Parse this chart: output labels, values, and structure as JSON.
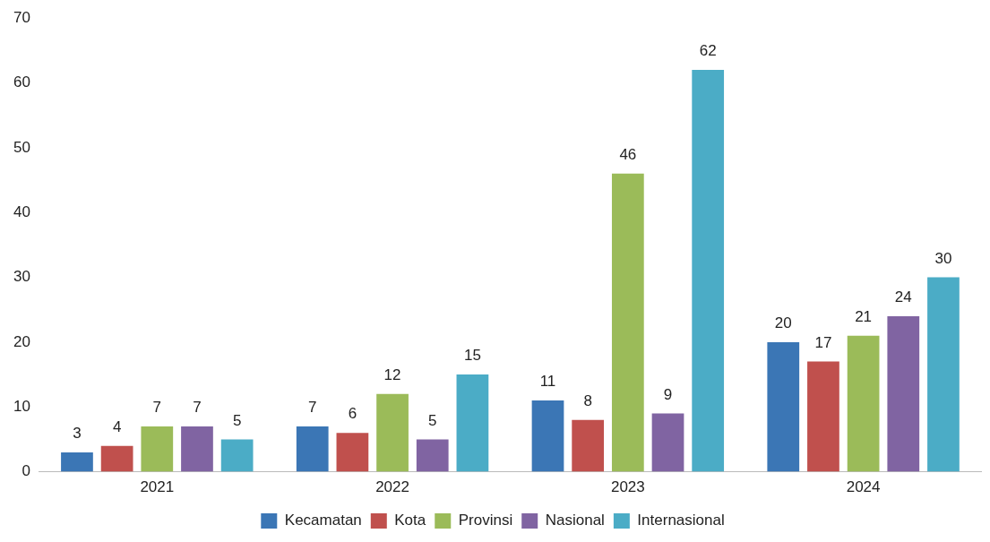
{
  "chart_data": {
    "type": "bar",
    "categories": [
      "2021",
      "2022",
      "2023",
      "2024"
    ],
    "series": [
      {
        "name": "Kecamatan",
        "color": "#3b76b5",
        "values": [
          3,
          7,
          11,
          20
        ]
      },
      {
        "name": "Kota",
        "color": "#c0504d",
        "values": [
          4,
          6,
          8,
          17
        ]
      },
      {
        "name": "Provinsi",
        "color": "#9bbb59",
        "values": [
          7,
          12,
          46,
          21
        ]
      },
      {
        "name": "Nasional",
        "color": "#8064a2",
        "values": [
          7,
          5,
          9,
          24
        ]
      },
      {
        "name": "Internasional",
        "color": "#4bacc6",
        "values": [
          5,
          15,
          62,
          30
        ]
      }
    ],
    "ylim": [
      0,
      70
    ],
    "yticks": [
      0,
      10,
      20,
      30,
      40,
      50,
      60,
      70
    ],
    "grid": false,
    "legend": "bottom",
    "data_labels": true
  }
}
